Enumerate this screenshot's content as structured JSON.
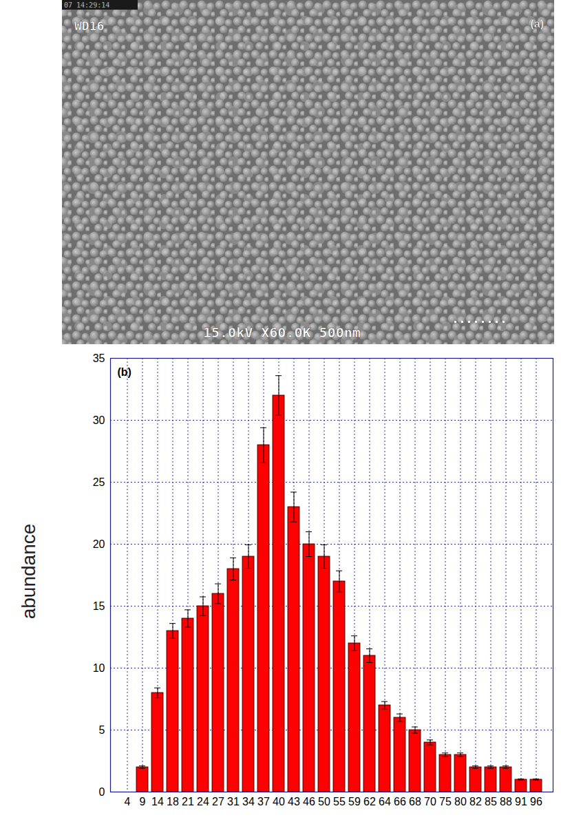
{
  "image_panel": {
    "label": "(a)",
    "timestamp": "07 14:29:14",
    "working_distance": "WD16",
    "voltage": "15.0kV",
    "magnification": "X60.0K",
    "scale_bar": "500nm"
  },
  "chart_data": {
    "type": "bar",
    "panel_label": "(b)",
    "ylabel": "abundance",
    "categories": [
      "4",
      "9",
      "14",
      "18",
      "21",
      "24",
      "27",
      "31",
      "34",
      "37",
      "40",
      "43",
      "46",
      "50",
      "55",
      "59",
      "62",
      "64",
      "66",
      "68",
      "70",
      "75",
      "80",
      "82",
      "85",
      "88",
      "91",
      "96"
    ],
    "values": [
      0,
      2,
      8,
      13,
      14,
      15,
      16,
      18,
      19,
      28,
      32,
      23,
      20,
      19,
      17,
      12,
      11,
      7,
      6,
      5,
      4,
      3,
      3,
      2,
      2,
      2,
      1,
      1
    ],
    "errors": [
      0,
      0.1,
      0.4,
      0.6,
      0.7,
      0.75,
      0.8,
      0.9,
      0.95,
      1.4,
      1.6,
      1.2,
      1.0,
      0.95,
      0.85,
      0.6,
      0.55,
      0.3,
      0.3,
      0.25,
      0.2,
      0.15,
      0.15,
      0.1,
      0.1,
      0.1,
      0.05,
      0.05
    ],
    "color": "#ff0000",
    "ylim": [
      0,
      35
    ],
    "yticks": [
      0,
      5,
      10,
      15,
      20,
      25,
      30,
      35
    ],
    "grid": true
  }
}
